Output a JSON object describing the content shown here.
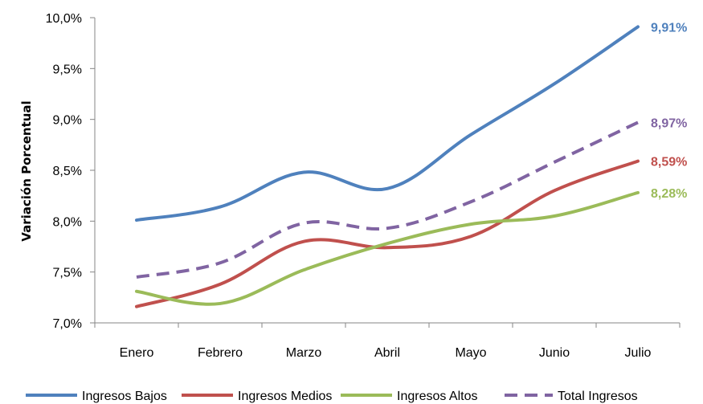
{
  "chart_data": {
    "type": "line",
    "categories": [
      "Enero",
      "Febrero",
      "Marzo",
      "Abril",
      "Mayo",
      "Junio",
      "Julio"
    ],
    "ylabel": "Variación Porcentual",
    "ylim": [
      7.0,
      10.0
    ],
    "yticks": [
      "7,0%",
      "7,5%",
      "8,0%",
      "8,5%",
      "9,0%",
      "9,5%",
      "10,0%"
    ],
    "grid": false,
    "legend_position": "bottom",
    "series": [
      {
        "name": "Ingresos Bajos",
        "color": "#4F81BD",
        "dashed": false,
        "values": [
          8.01,
          8.14,
          8.48,
          8.32,
          8.85,
          9.35,
          9.91
        ],
        "end_label": "9,91%"
      },
      {
        "name": "Ingresos Medios",
        "color": "#C0504D",
        "dashed": false,
        "values": [
          7.16,
          7.38,
          7.8,
          7.74,
          7.85,
          8.3,
          8.59
        ],
        "end_label": "8,59%"
      },
      {
        "name": "Ingresos Altos",
        "color": "#9BBB59",
        "dashed": false,
        "values": [
          7.31,
          7.19,
          7.52,
          7.78,
          7.97,
          8.05,
          8.28
        ],
        "end_label": "8,28%"
      },
      {
        "name": "Total Ingresos",
        "color": "#8064A2",
        "dashed": true,
        "values": [
          7.45,
          7.59,
          7.98,
          7.93,
          8.19,
          8.58,
          8.97
        ],
        "end_label": "8,97%"
      }
    ]
  }
}
